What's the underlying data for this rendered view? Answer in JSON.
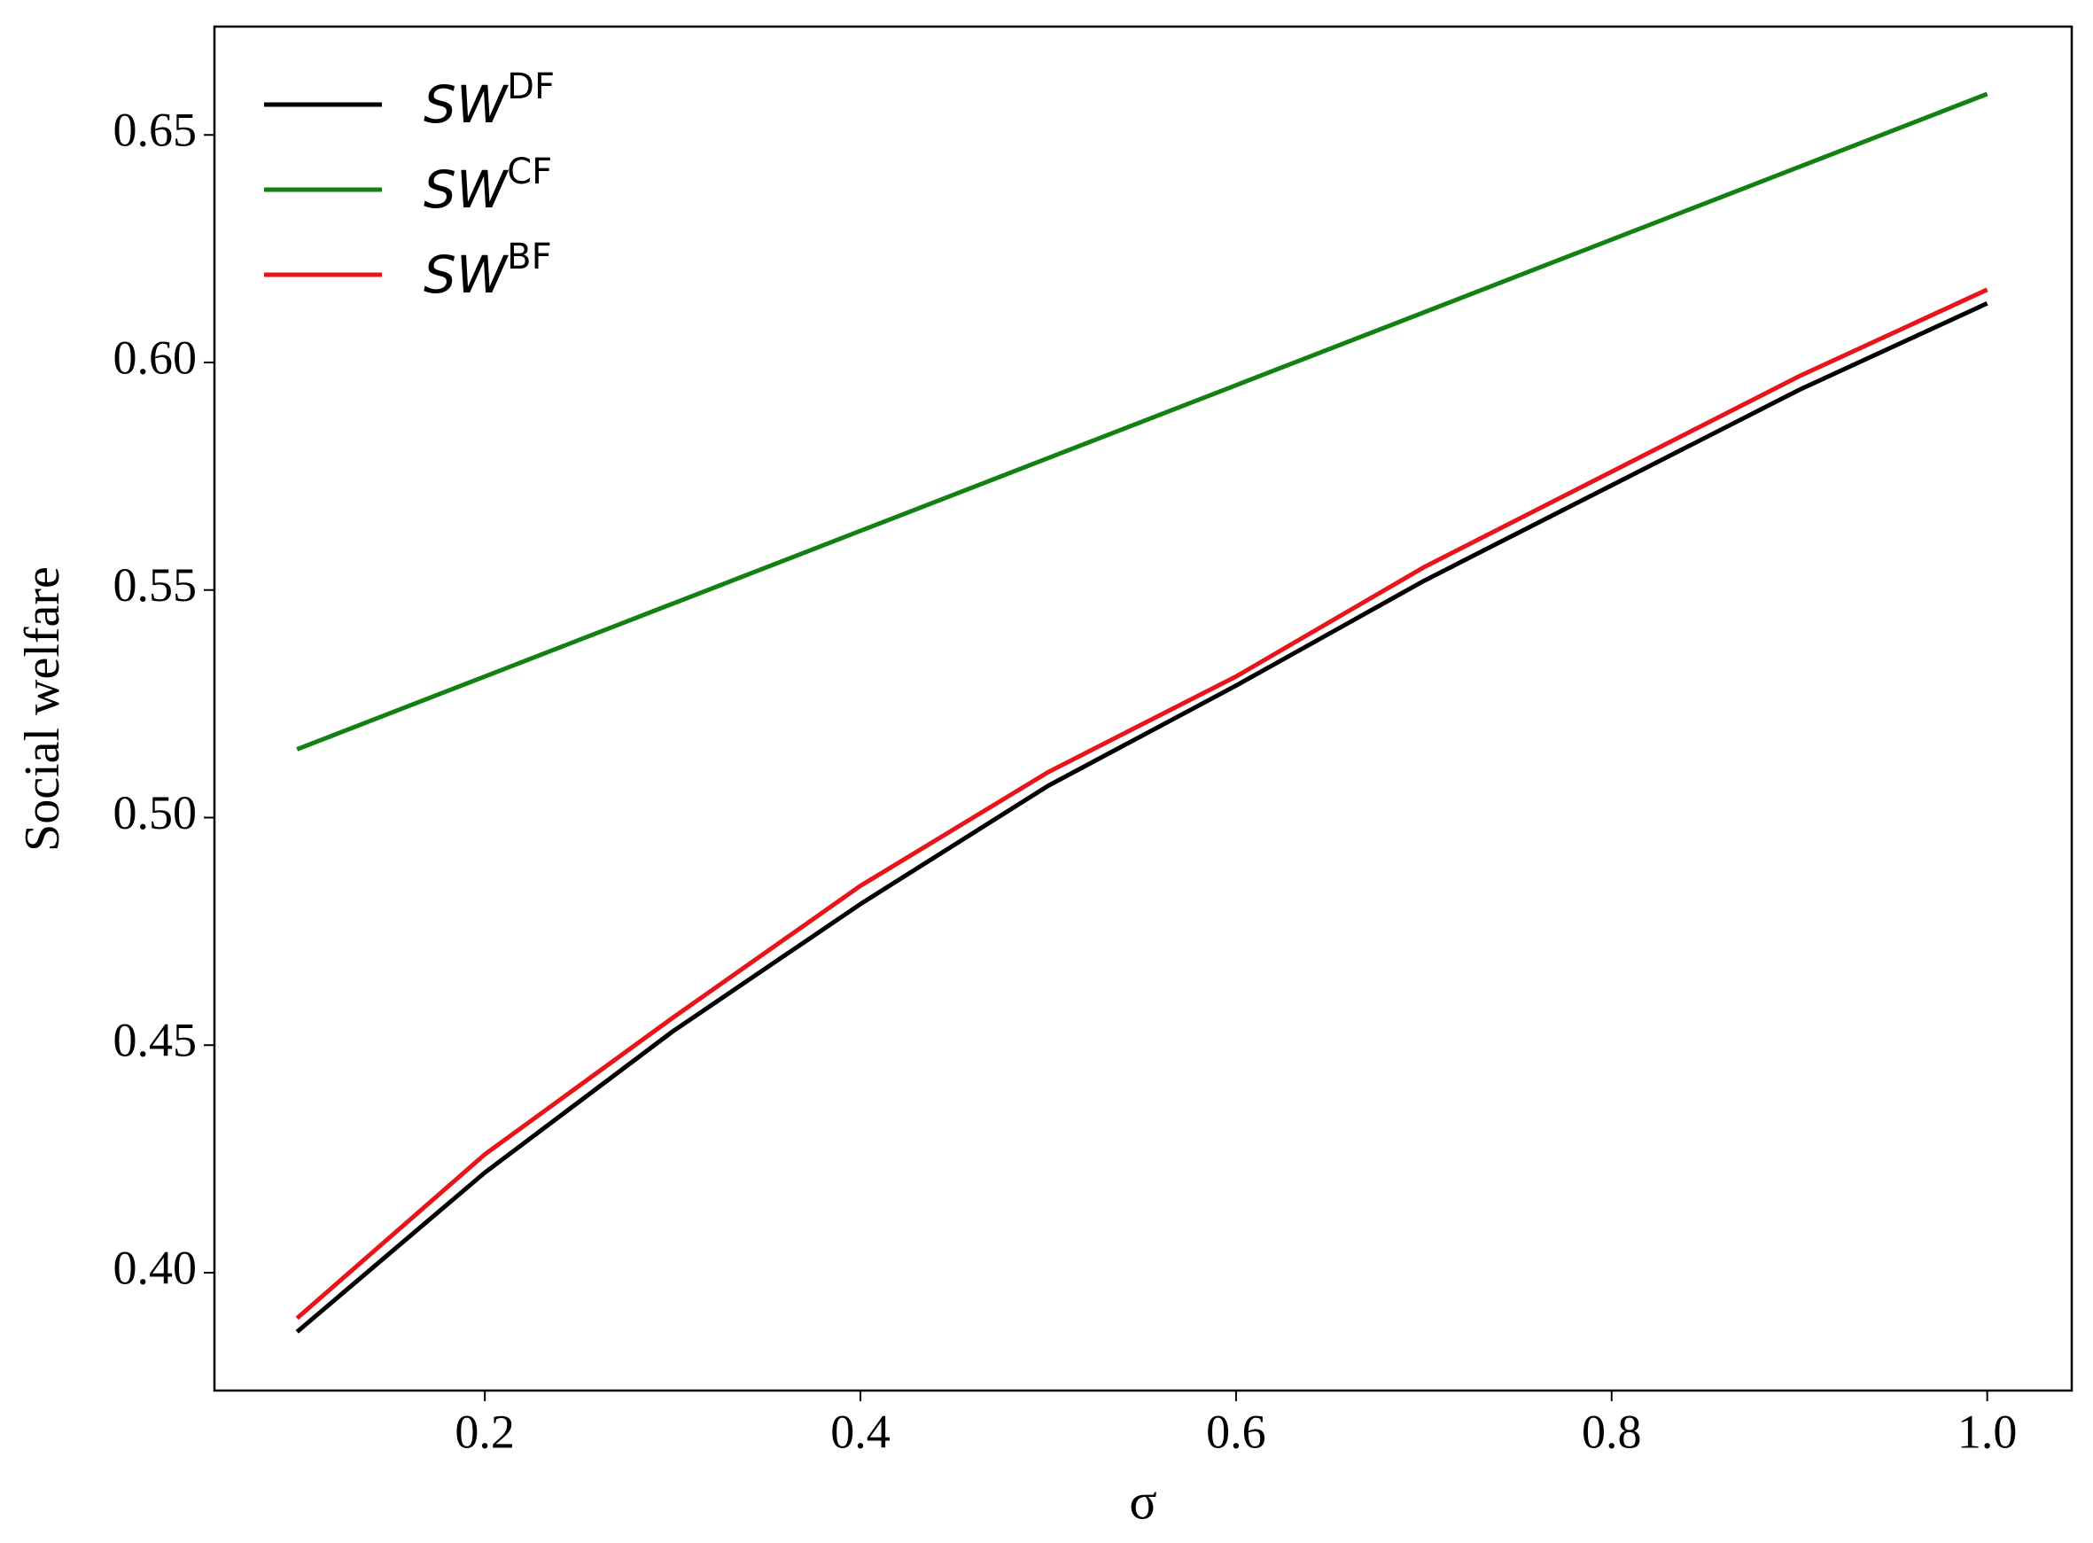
{
  "chart_data": {
    "type": "line",
    "x_label": "σ",
    "y_label": "Social welfare",
    "x": [
      0.1,
      0.2,
      0.3,
      0.4,
      0.5,
      0.6,
      0.7,
      0.8,
      0.9,
      1.0
    ],
    "series": [
      {
        "name": "SW",
        "superscript": "DF",
        "color": "#000000",
        "values": [
          0.387,
          0.422,
          0.453,
          0.481,
          0.507,
          0.529,
          0.552,
          0.573,
          0.594,
          0.613
        ]
      },
      {
        "name": "SW",
        "superscript": "CF",
        "color": "#138013",
        "values": [
          0.515,
          0.531,
          0.547,
          0.563,
          0.579,
          0.595,
          0.611,
          0.627,
          0.643,
          0.659
        ]
      },
      {
        "name": "SW",
        "superscript": "BF",
        "color": "#e8141a",
        "values": [
          0.39,
          0.426,
          0.456,
          0.485,
          0.51,
          0.531,
          0.555,
          0.576,
          0.597,
          0.616
        ]
      }
    ],
    "xlim": [
      0.056,
      1.045
    ],
    "ylim": [
      0.3741,
      0.6738
    ],
    "xticks": [
      {
        "value": 0.2,
        "label": "0.2"
      },
      {
        "value": 0.4,
        "label": "0.4"
      },
      {
        "value": 0.6,
        "label": "0.6"
      },
      {
        "value": 0.8,
        "label": "0.8"
      },
      {
        "value": 1.0,
        "label": "1.0"
      }
    ],
    "yticks": [
      {
        "value": 0.4,
        "label": "0.40"
      },
      {
        "value": 0.45,
        "label": "0.45"
      },
      {
        "value": 0.5,
        "label": "0.50"
      },
      {
        "value": 0.55,
        "label": "0.55"
      },
      {
        "value": 0.6,
        "label": "0.60"
      },
      {
        "value": 0.65,
        "label": "0.65"
      }
    ],
    "legend": "upper left",
    "grid": false
  }
}
